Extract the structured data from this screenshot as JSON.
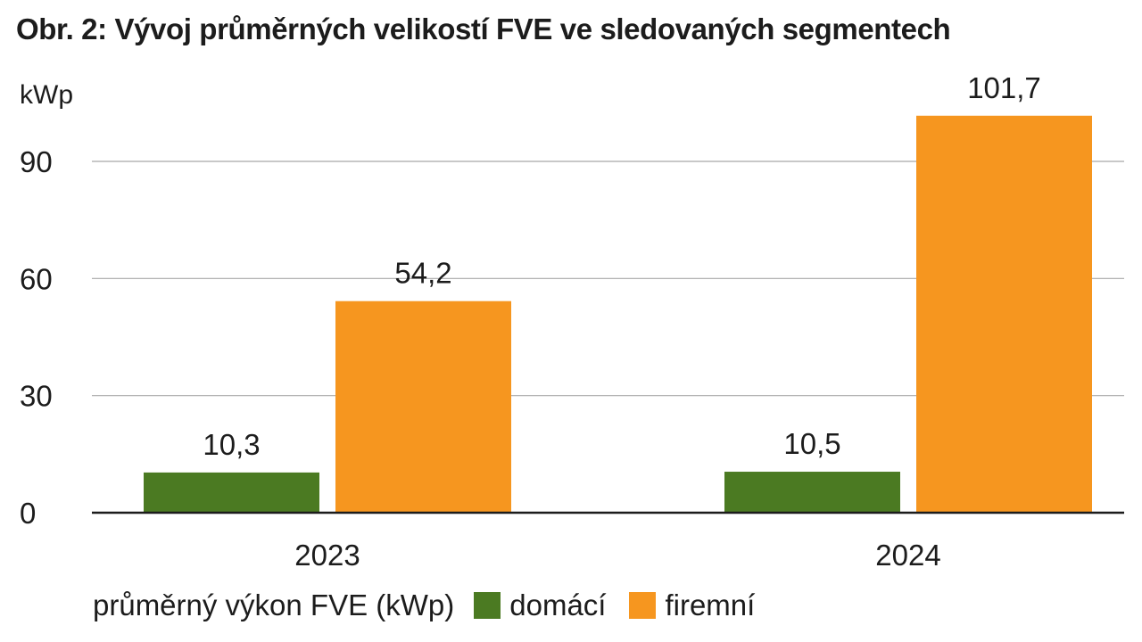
{
  "chart_data": {
    "type": "bar",
    "title": "Obr. 2: Vývoj průměrných velikostí FVE ve sledovaných segmentech",
    "ylabel": "kWp",
    "xlabel": "",
    "categories": [
      "2023",
      "2024"
    ],
    "series": [
      {
        "name": "domácí",
        "values": [
          10.3,
          10.5
        ],
        "labels": [
          "10,3",
          "10,5"
        ],
        "color": "#4b7a22"
      },
      {
        "name": "firemní",
        "values": [
          54.2,
          101.7
        ],
        "labels": [
          "54,2",
          "101,7"
        ],
        "color": "#f6961f"
      }
    ],
    "ylim": [
      0,
      105
    ],
    "yticks": [
      0,
      30,
      60,
      90
    ],
    "grid": true,
    "legend_title": "průměrný výkon FVE (kWp)",
    "legend_position": "bottom-left"
  }
}
